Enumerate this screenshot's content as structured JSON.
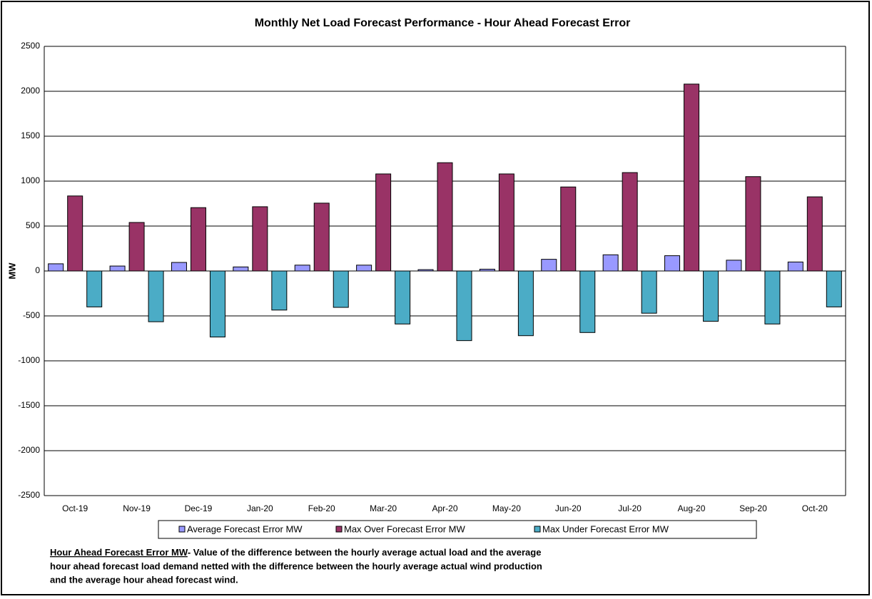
{
  "chart_data": {
    "type": "bar",
    "title": "Monthly Net Load Forecast Performance - Hour Ahead Forecast Error",
    "y_label": "MW",
    "categories": [
      "Oct-19",
      "Nov-19",
      "Dec-19",
      "Jan-20",
      "Feb-20",
      "Mar-20",
      "Apr-20",
      "May-20",
      "Jun-20",
      "Jul-20",
      "Aug-20",
      "Sep-20",
      "Oct-20"
    ],
    "series": [
      {
        "name": "Average Forecast Error MW",
        "color": "#9999ff",
        "values": [
          80,
          55,
          95,
          45,
          65,
          65,
          15,
          20,
          130,
          180,
          170,
          120,
          100
        ]
      },
      {
        "name": "Max Over Forecast Error MW",
        "color": "#993366",
        "values": [
          835,
          540,
          705,
          715,
          755,
          1080,
          1205,
          1080,
          935,
          1095,
          2080,
          1050,
          825
        ]
      },
      {
        "name": "Max Under Forecast Error MW",
        "color": "#4bacc6",
        "values": [
          -400,
          -565,
          -735,
          -435,
          -405,
          -590,
          -775,
          -720,
          -685,
          -470,
          -560,
          -590,
          -400
        ]
      }
    ],
    "ylim": [
      -2500,
      2500
    ],
    "yticks": [
      -2500,
      -2000,
      -1500,
      -1000,
      -500,
      0,
      500,
      1000,
      1500,
      2000,
      2500
    ],
    "grid": true,
    "legend": "bottom",
    "note_term": "Hour Ahead Forecast Error MW",
    "note_lines": [
      "- Value of the difference between the hourly average actual load and the average",
      "hour ahead forecast load demand netted with the difference between the hourly average actual wind production",
      "and the average hour ahead forecast wind."
    ]
  }
}
